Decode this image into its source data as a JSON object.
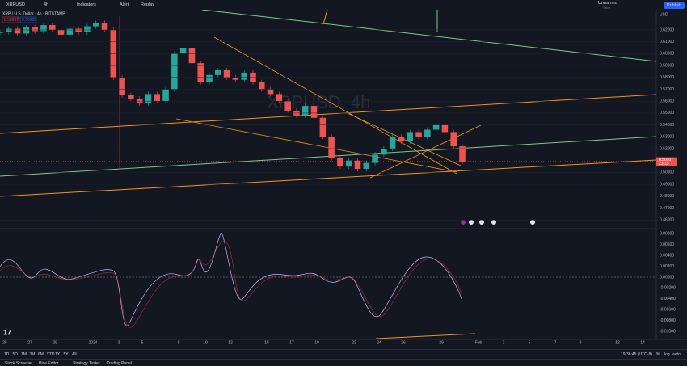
{
  "toolbar": {
    "symbol": "XRPUSD",
    "interval": "4h",
    "indicators": "Indicators",
    "alert": "Alert",
    "replay": "Replay",
    "layout": "Unnamed",
    "save": "Save",
    "publish": "Publish"
  },
  "legend": {
    "title": "XRP / U.S. Dollar · 4h · BITSTAMP",
    "sell": "0.50937",
    "buy": "0.50950"
  },
  "watermark": "XRPUSD, 4h",
  "currency": "USD",
  "last_price": {
    "value": 0.50937,
    "label": "0.50937",
    "countdown": "23:11"
  },
  "price_ticks": [
    {
      "value": 0.62,
      "label": "0.62000"
    },
    {
      "value": 0.61,
      "label": "0.61000"
    },
    {
      "value": 0.6,
      "label": "0.60000"
    },
    {
      "value": 0.59,
      "label": "0.59000"
    },
    {
      "value": 0.58,
      "label": "0.58000"
    },
    {
      "value": 0.57,
      "label": "0.57000"
    },
    {
      "value": 0.56,
      "label": "0.56000"
    },
    {
      "value": 0.55,
      "label": "0.55000"
    },
    {
      "value": 0.54,
      "label": "0.54000"
    },
    {
      "value": 0.53,
      "label": "0.53000"
    },
    {
      "value": 0.52,
      "label": "0.52000"
    },
    {
      "value": 0.5,
      "label": "0.50000"
    },
    {
      "value": 0.49,
      "label": "0.49000"
    },
    {
      "value": 0.48,
      "label": "0.48000"
    },
    {
      "value": 0.47,
      "label": "0.47000"
    },
    {
      "value": 0.46,
      "label": "0.46000"
    }
  ],
  "macd_ticks": [
    {
      "value": 0.008,
      "label": "0.00800"
    },
    {
      "value": 0.006,
      "label": "0.00600"
    },
    {
      "value": 0.004,
      "label": "0.00400"
    },
    {
      "value": 0.002,
      "label": "0.00200"
    },
    {
      "value": 0,
      "label": "0.00000"
    },
    {
      "value": -0.002,
      "label": "-0.00200"
    },
    {
      "value": -0.004,
      "label": "-0.00400"
    },
    {
      "value": -0.006,
      "label": "-0.00600"
    },
    {
      "value": -0.008,
      "label": "-0.00800"
    },
    {
      "value": -0.01,
      "label": "-0.01000"
    }
  ],
  "time_labels": [
    "25",
    "27",
    "29",
    "2024",
    "3",
    "5",
    "8",
    "10",
    "12",
    "15",
    "17",
    "19",
    "22",
    "24",
    "26",
    "29",
    "Feb",
    "3",
    "5",
    "7",
    "9",
    "12",
    "14"
  ],
  "price_series": [
    0.618,
    0.621,
    0.617,
    0.622,
    0.619,
    0.624,
    0.62,
    0.616,
    0.621,
    0.618,
    0.623,
    0.626,
    0.62,
    0.58,
    0.565,
    0.562,
    0.558,
    0.566,
    0.56,
    0.57,
    0.6,
    0.605,
    0.592,
    0.576,
    0.582,
    0.586,
    0.58,
    0.578,
    0.584,
    0.576,
    0.57,
    0.566,
    0.56,
    0.552,
    0.548,
    0.556,
    0.546,
    0.53,
    0.512,
    0.505,
    0.51,
    0.503,
    0.508,
    0.515,
    0.52,
    0.53,
    0.526,
    0.534,
    0.53,
    0.536,
    0.54,
    0.534,
    0.522,
    0.509
  ],
  "ranges": [
    "1D",
    "5D",
    "1M",
    "3M",
    "6M",
    "YTD",
    "1Y",
    "5Y",
    "All"
  ],
  "clock": "19:36:45 (UTC-8)",
  "scale_modes": [
    "%",
    "log",
    "auto"
  ],
  "tabs": [
    "Stock Screener",
    "Pine Editor",
    "Strategy Tester",
    "Trading Panel"
  ]
}
